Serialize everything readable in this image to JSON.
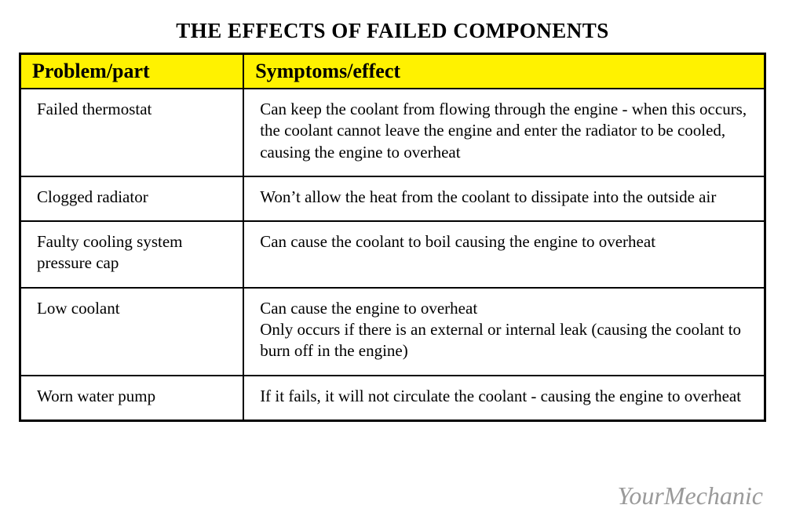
{
  "title": "THE EFFECTS OF FAILED COMPONENTS",
  "header_bg": "#fff200",
  "columns": [
    "Problem/part",
    "Symptoms/effect"
  ],
  "rows": [
    {
      "problem": "Failed thermostat",
      "symptom": "Can keep the coolant from flowing through the engine - when this occurs, the coolant cannot leave the engine and enter the radiator to be cooled, causing the engine to overheat"
    },
    {
      "problem": "Clogged radiator",
      "symptom": "Won’t allow the heat from the coolant to dissipate into the outside air"
    },
    {
      "problem": "Faulty cooling system pressure cap",
      "symptom": "Can cause the coolant to boil causing the engine to overheat"
    },
    {
      "problem": "Low coolant",
      "symptom": "Can cause the engine to overheat\nOnly occurs if there is an external or internal leak (causing the coolant to burn off in the engine)"
    },
    {
      "problem": "Worn water pump",
      "symptom": "If it fails, it will not circulate the coolant - causing the engine to overheat"
    }
  ],
  "signature": "YourMechanic"
}
